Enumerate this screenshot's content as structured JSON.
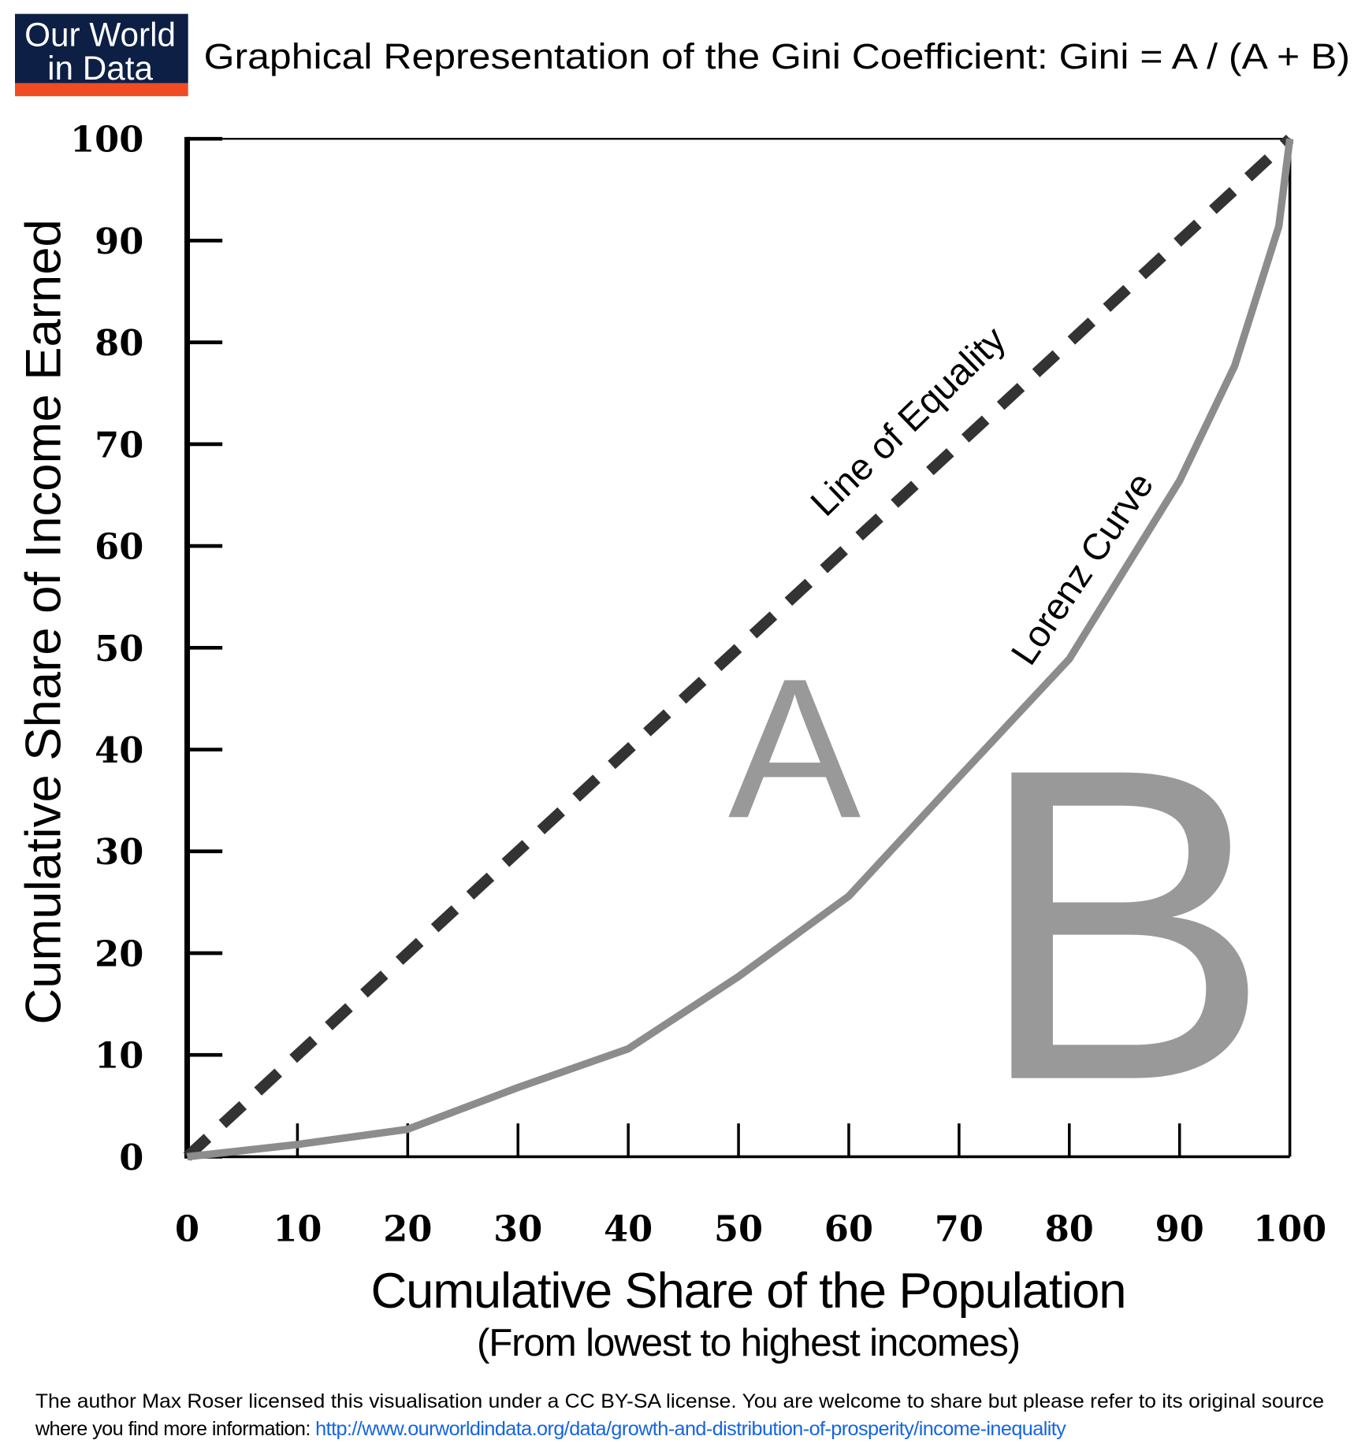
{
  "logo": {
    "line1": "Our World",
    "line2": "in Data",
    "bg_color": "#0d1f45",
    "stripe_color": "#f04b23"
  },
  "title": "Graphical Representation of the Gini Coefficient: Gini = A / (A + B)",
  "chart_data": {
    "type": "line",
    "title": "Graphical Representation of the Gini Coefficient: Gini = A / (A + B)",
    "xlabel": "Cumulative Share of the Population",
    "xlabel_sub": "(From lowest to highest incomes)",
    "ylabel": "Cumulative Share of Income Earned",
    "xlim": [
      0,
      100
    ],
    "ylim": [
      0,
      100
    ],
    "xticks": [
      "0",
      "10",
      "20",
      "30",
      "40",
      "50",
      "60",
      "70",
      "80",
      "90",
      "100"
    ],
    "yticks": [
      "0",
      "10",
      "20",
      "30",
      "40",
      "50",
      "60",
      "70",
      "80",
      "90",
      "100"
    ],
    "grid": false,
    "series": [
      {
        "name": "Line of Equality",
        "style": "dashed",
        "color": "#333333",
        "x": [
          0,
          100
        ],
        "y": [
          0,
          100
        ]
      },
      {
        "name": "Lorenz Curve",
        "style": "solid",
        "color": "#8c8c8c",
        "x": [
          0,
          10,
          20,
          30,
          40,
          50,
          60,
          70,
          80,
          90,
          95,
          99,
          100
        ],
        "y": [
          0,
          1.2,
          2.7,
          6.8,
          10.6,
          17.7,
          25.6,
          37.3,
          48.9,
          66.4,
          77.7,
          91.4,
          100
        ]
      }
    ],
    "annotations": [
      {
        "text": "A",
        "color": "#999999"
      },
      {
        "text": "B",
        "color": "#999999"
      }
    ]
  },
  "footer": {
    "line1": "The author Max Roser licensed this visualisation under a CC BY-SA license. You are welcome to share but please refer to its original source",
    "line2_prefix": "where you find more information: ",
    "link": "http://www.ourworldindata.org/data/growth-and-distribution-of-prosperity/income-inequality",
    "link_color": "#1565e0"
  }
}
